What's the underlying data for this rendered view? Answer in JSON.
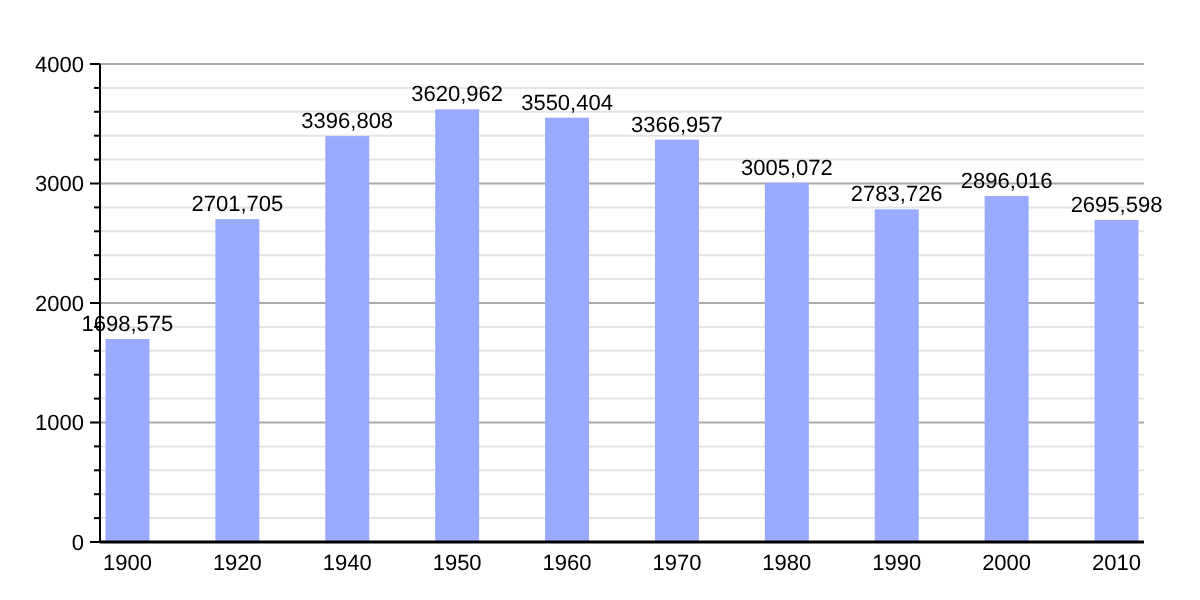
{
  "chart_data": {
    "type": "bar",
    "categories": [
      "1900",
      "1920",
      "1940",
      "1950",
      "1960",
      "1970",
      "1980",
      "1990",
      "2000",
      "2010"
    ],
    "values": [
      1698.575,
      2701.705,
      3396.808,
      3620.962,
      3550.404,
      3366.957,
      3005.072,
      2783.726,
      2896.016,
      2695.598
    ],
    "value_labels": [
      "1698,575",
      "2701,705",
      "3396,808",
      "3620,962",
      "3550,404",
      "3366,957",
      "3005,072",
      "2783,726",
      "2896,016",
      "2695,598"
    ],
    "color": "#99aaff",
    "ylim": [
      0,
      4000
    ],
    "yticks": [
      0,
      {
        "value": 200,
        "label": null
      },
      {
        "value": 400,
        "label": null
      },
      {
        "value": 600,
        "label": null
      },
      {
        "value": 800,
        "label": null
      },
      1000,
      {
        "value": 1200,
        "label": null
      },
      {
        "value": 1400,
        "label": null
      },
      {
        "value": 1600,
        "label": null
      },
      {
        "value": 1800,
        "label": null
      },
      2000,
      {
        "value": 2200,
        "label": null
      },
      {
        "value": 2400,
        "label": null
      },
      {
        "value": 2600,
        "label": null
      },
      {
        "value": 2800,
        "label": null
      },
      3000,
      {
        "value": 3200,
        "label": null
      },
      {
        "value": 3400,
        "label": null
      },
      {
        "value": 3600,
        "label": null
      },
      {
        "value": 3800,
        "label": null
      },
      4000
    ],
    "grid": true
  }
}
